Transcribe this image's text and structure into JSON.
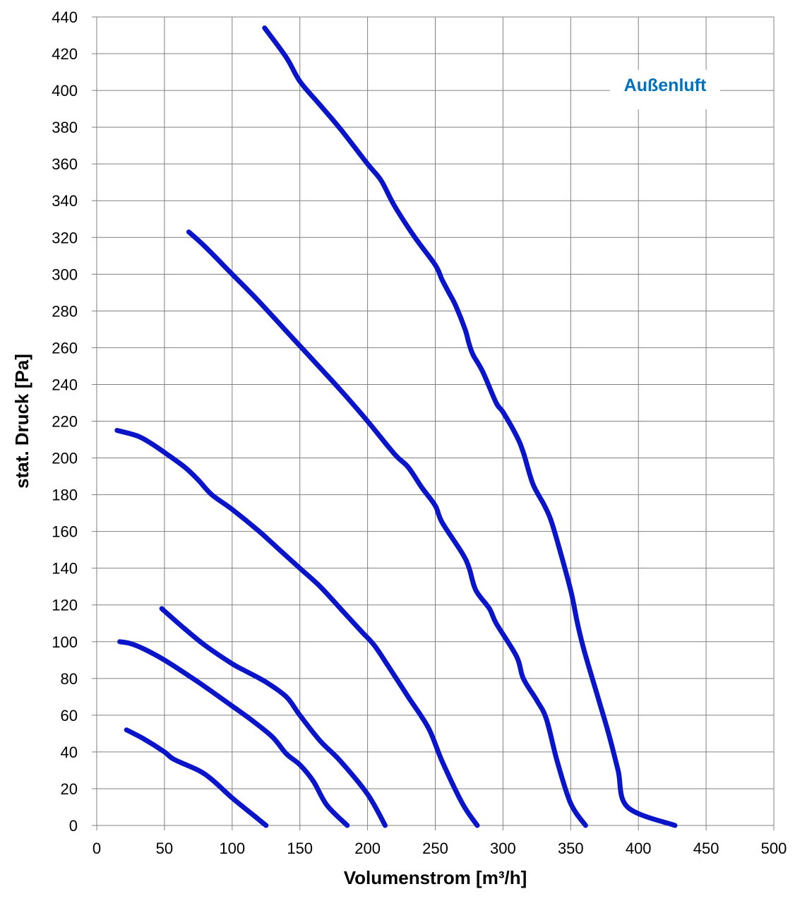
{
  "chart_data": {
    "type": "line",
    "title": "",
    "xlabel": "Volumenstrom [m³/h]",
    "ylabel": "stat. Druck [Pa]",
    "xlim": [
      0,
      500
    ],
    "ylim": [
      0,
      440
    ],
    "x_ticks": [
      0,
      50,
      100,
      150,
      200,
      250,
      300,
      350,
      400,
      450,
      500
    ],
    "y_ticks": [
      0,
      20,
      40,
      60,
      80,
      100,
      120,
      140,
      160,
      180,
      200,
      220,
      240,
      260,
      280,
      300,
      320,
      340,
      360,
      380,
      400,
      420,
      440
    ],
    "grid": true,
    "legend": {
      "label": "Außenluft",
      "placement": "top-right",
      "color": "#0070c0"
    },
    "line_color": "#0a14c8",
    "series": [
      {
        "points": [
          [
            22,
            52
          ],
          [
            35,
            47
          ],
          [
            50,
            40
          ],
          [
            57,
            36
          ],
          [
            75,
            30
          ],
          [
            85,
            25
          ],
          [
            100,
            15
          ],
          [
            115,
            6
          ],
          [
            125,
            0
          ]
        ]
      },
      {
        "points": [
          [
            17,
            100
          ],
          [
            25,
            99
          ],
          [
            35,
            96
          ],
          [
            50,
            90
          ],
          [
            75,
            78
          ],
          [
            100,
            65
          ],
          [
            115,
            57
          ],
          [
            130,
            48
          ],
          [
            140,
            39
          ],
          [
            150,
            33
          ],
          [
            160,
            24
          ],
          [
            170,
            11
          ],
          [
            185,
            0
          ]
        ]
      },
      {
        "points": [
          [
            48,
            118
          ],
          [
            65,
            107
          ],
          [
            80,
            98
          ],
          [
            100,
            88
          ],
          [
            110,
            84
          ],
          [
            125,
            78
          ],
          [
            140,
            70
          ],
          [
            150,
            60
          ],
          [
            165,
            46
          ],
          [
            180,
            35
          ],
          [
            200,
            17
          ],
          [
            213,
            0
          ]
        ]
      },
      {
        "points": [
          [
            15,
            215
          ],
          [
            30,
            212
          ],
          [
            40,
            208
          ],
          [
            50,
            203
          ],
          [
            65,
            195
          ],
          [
            75,
            188
          ],
          [
            85,
            180
          ],
          [
            100,
            172
          ],
          [
            120,
            160
          ],
          [
            135,
            150
          ],
          [
            150,
            140
          ],
          [
            165,
            130
          ],
          [
            180,
            118
          ],
          [
            195,
            106
          ],
          [
            205,
            98
          ],
          [
            215,
            87
          ],
          [
            230,
            70
          ],
          [
            245,
            53
          ],
          [
            255,
            35
          ],
          [
            270,
            12
          ],
          [
            281,
            0
          ]
        ]
      },
      {
        "points": [
          [
            68,
            323
          ],
          [
            80,
            315
          ],
          [
            100,
            300
          ],
          [
            120,
            285
          ],
          [
            150,
            261
          ],
          [
            180,
            237
          ],
          [
            200,
            220
          ],
          [
            220,
            202
          ],
          [
            230,
            195
          ],
          [
            240,
            184
          ],
          [
            250,
            174
          ],
          [
            255,
            165
          ],
          [
            270,
            148
          ],
          [
            275,
            140
          ],
          [
            280,
            128
          ],
          [
            290,
            118
          ],
          [
            295,
            110
          ],
          [
            310,
            92
          ],
          [
            315,
            80
          ],
          [
            325,
            68
          ],
          [
            332,
            58
          ],
          [
            340,
            35
          ],
          [
            350,
            12
          ],
          [
            361,
            0
          ]
        ]
      },
      {
        "points": [
          [
            124,
            434
          ],
          [
            140,
            418
          ],
          [
            150,
            405
          ],
          [
            165,
            392
          ],
          [
            180,
            379
          ],
          [
            200,
            360
          ],
          [
            210,
            351
          ],
          [
            220,
            337
          ],
          [
            235,
            320
          ],
          [
            250,
            305
          ],
          [
            255,
            297
          ],
          [
            260,
            290
          ],
          [
            265,
            283
          ],
          [
            272,
            270
          ],
          [
            275,
            262
          ],
          [
            278,
            256
          ],
          [
            285,
            247
          ],
          [
            295,
            230
          ],
          [
            300,
            225
          ],
          [
            310,
            212
          ],
          [
            315,
            203
          ],
          [
            322,
            186
          ],
          [
            330,
            175
          ],
          [
            335,
            167
          ],
          [
            340,
            155
          ],
          [
            350,
            128
          ],
          [
            355,
            110
          ],
          [
            360,
            95
          ],
          [
            370,
            70
          ],
          [
            378,
            50
          ],
          [
            385,
            30
          ],
          [
            392,
            10
          ],
          [
            427,
            0
          ]
        ]
      }
    ]
  }
}
